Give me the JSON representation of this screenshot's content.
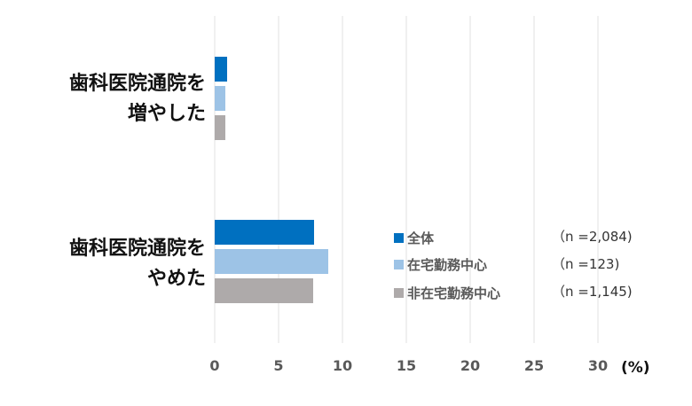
{
  "chart_data": {
    "type": "bar",
    "orientation": "horizontal",
    "title": "",
    "xlabel": "(%)",
    "ylabel": "",
    "xlim": [
      0,
      30
    ],
    "xticks": [
      0,
      5,
      10,
      15,
      20,
      25,
      30
    ],
    "grid": true,
    "legend_position": "right-center",
    "categories": [
      "歯科医院通院を\n増やした",
      "歯科医院通院を\nやめた"
    ],
    "series": [
      {
        "name": "全体",
        "n": "（n =2,084)",
        "color": "#0070C0",
        "values": [
          1.0,
          7.8
        ]
      },
      {
        "name": "在宅勤務中心",
        "n": "（n =123)",
        "color": "#9DC3E6",
        "values": [
          0.8,
          8.9
        ]
      },
      {
        "name": "非在宅勤務中心",
        "n": "（n =1,145)",
        "color": "#AEAAAA",
        "values": [
          0.8,
          7.7
        ]
      }
    ]
  },
  "labels": {
    "cat0": "歯科医院通院を\n増やした",
    "cat1": "歯科医院通院を\nやめた",
    "unit": "(%)",
    "ticks": [
      "0",
      "5",
      "10",
      "15",
      "20",
      "25",
      "30"
    ],
    "legend": [
      "全体",
      "在宅勤務中心",
      "非在宅勤務中心"
    ],
    "n": [
      "（n =2,084)",
      "（n =123)",
      "（n =1,145)"
    ]
  }
}
